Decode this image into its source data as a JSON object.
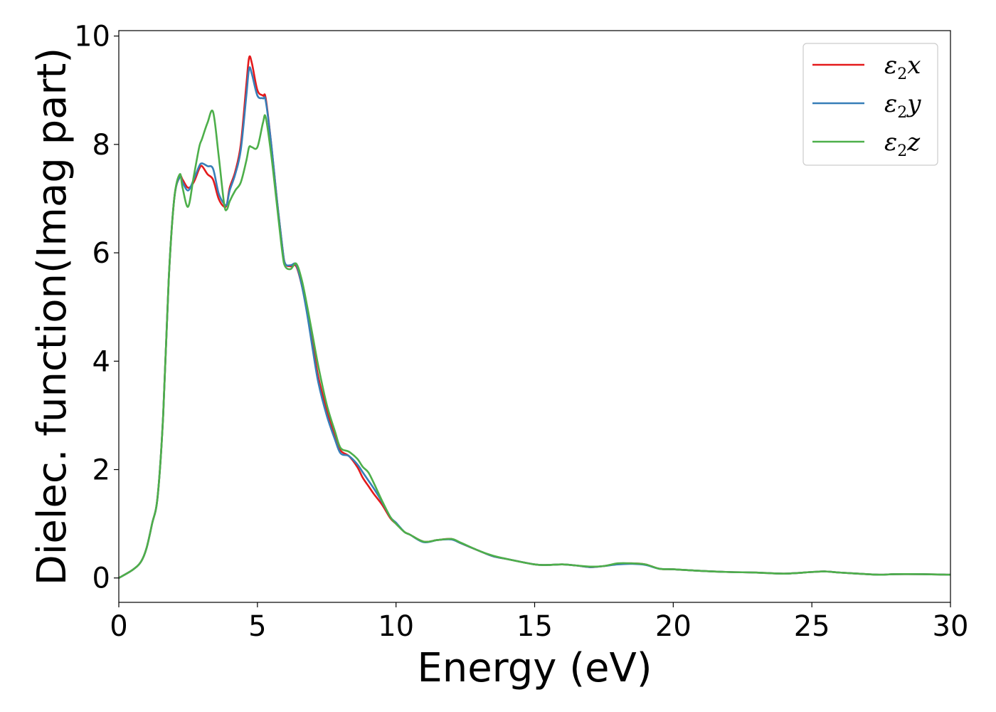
{
  "chart_data": {
    "type": "line",
    "xlabel": "Energy (eV)",
    "ylabel": "Dielec. function(Imag part)",
    "xlim": [
      0,
      30
    ],
    "ylim": [
      -0.45,
      10.1
    ],
    "xticks": [
      "0",
      "5",
      "10",
      "15",
      "20",
      "25",
      "30"
    ],
    "yticks": [
      "0",
      "2",
      "4",
      "6",
      "8",
      "10"
    ],
    "legend_position": "upper-right",
    "grid": false,
    "series": [
      {
        "name": "ε2x",
        "legend_base": "ε",
        "legend_sub": "2",
        "legend_var": "x",
        "color": "#e41a1c",
        "x": [
          0,
          0.5,
          0.8,
          1.0,
          1.2,
          1.4,
          1.6,
          1.8,
          2.0,
          2.2,
          2.3,
          2.5,
          2.7,
          2.9,
          3.0,
          3.2,
          3.4,
          3.6,
          3.8,
          3.9,
          4.0,
          4.2,
          4.4,
          4.6,
          4.7,
          4.8,
          5.0,
          5.2,
          5.3,
          5.5,
          5.7,
          5.9,
          6.0,
          6.2,
          6.4,
          6.6,
          6.8,
          7.0,
          7.2,
          7.5,
          7.8,
          8.0,
          8.3,
          8.6,
          8.8,
          9.0,
          9.2,
          9.5,
          9.8,
          10.0,
          10.3,
          10.5,
          11.0,
          11.5,
          12.0,
          12.3,
          13.0,
          13.5,
          14.0,
          15.0,
          15.5,
          16.0,
          16.5,
          17.0,
          17.5,
          18.0,
          18.5,
          19.0,
          19.5,
          20.0,
          21.0,
          22.0,
          23.0,
          24.0,
          25.0,
          25.5,
          26.0,
          27.0,
          27.5,
          28.0,
          29.0,
          30.0
        ],
        "y": [
          0.0,
          0.15,
          0.3,
          0.55,
          1.0,
          1.5,
          3.0,
          5.5,
          7.0,
          7.4,
          7.35,
          7.2,
          7.3,
          7.55,
          7.6,
          7.45,
          7.35,
          7.0,
          6.85,
          6.9,
          7.2,
          7.5,
          8.0,
          9.1,
          9.6,
          9.5,
          9.0,
          8.9,
          8.85,
          8.0,
          7.0,
          6.1,
          5.8,
          5.75,
          5.75,
          5.4,
          4.9,
          4.3,
          3.7,
          3.1,
          2.6,
          2.35,
          2.25,
          2.05,
          1.85,
          1.7,
          1.55,
          1.35,
          1.1,
          1.0,
          0.85,
          0.8,
          0.67,
          0.7,
          0.72,
          0.65,
          0.5,
          0.4,
          0.35,
          0.25,
          0.24,
          0.25,
          0.23,
          0.2,
          0.22,
          0.26,
          0.27,
          0.25,
          0.17,
          0.16,
          0.13,
          0.11,
          0.1,
          0.08,
          0.11,
          0.12,
          0.1,
          0.07,
          0.06,
          0.07,
          0.07,
          0.06
        ]
      },
      {
        "name": "ε2y",
        "legend_base": "ε",
        "legend_sub": "2",
        "legend_var": "y",
        "color": "#377eb8",
        "x": [
          0,
          0.5,
          0.8,
          1.0,
          1.2,
          1.4,
          1.6,
          1.8,
          2.0,
          2.2,
          2.3,
          2.5,
          2.7,
          2.9,
          3.0,
          3.2,
          3.4,
          3.6,
          3.8,
          3.9,
          4.0,
          4.2,
          4.4,
          4.6,
          4.7,
          4.8,
          5.0,
          5.2,
          5.3,
          5.5,
          5.7,
          5.9,
          6.0,
          6.2,
          6.4,
          6.6,
          6.8,
          7.0,
          7.2,
          7.5,
          7.8,
          8.0,
          8.3,
          8.6,
          8.8,
          9.0,
          9.2,
          9.5,
          9.8,
          10.0,
          10.3,
          10.5,
          11.0,
          11.5,
          12.0,
          12.3,
          13.0,
          13.5,
          14.0,
          15.0,
          15.5,
          16.0,
          16.5,
          17.0,
          17.5,
          18.0,
          18.5,
          19.0,
          19.5,
          20.0,
          21.0,
          22.0,
          23.0,
          24.0,
          25.0,
          25.5,
          26.0,
          27.0,
          27.5,
          28.0,
          29.0,
          30.0
        ],
        "y": [
          0.0,
          0.15,
          0.3,
          0.55,
          1.0,
          1.5,
          3.0,
          5.5,
          7.0,
          7.4,
          7.3,
          7.15,
          7.35,
          7.6,
          7.65,
          7.6,
          7.55,
          7.1,
          6.9,
          6.9,
          7.15,
          7.45,
          7.9,
          8.9,
          9.4,
          9.3,
          8.9,
          8.85,
          8.8,
          8.0,
          7.0,
          6.1,
          5.8,
          5.77,
          5.78,
          5.4,
          4.85,
          4.2,
          3.6,
          3.0,
          2.55,
          2.3,
          2.25,
          2.1,
          1.95,
          1.8,
          1.65,
          1.4,
          1.12,
          1.02,
          0.85,
          0.8,
          0.66,
          0.7,
          0.71,
          0.65,
          0.5,
          0.4,
          0.35,
          0.25,
          0.24,
          0.25,
          0.23,
          0.2,
          0.22,
          0.25,
          0.26,
          0.24,
          0.17,
          0.16,
          0.13,
          0.11,
          0.1,
          0.08,
          0.11,
          0.12,
          0.1,
          0.07,
          0.06,
          0.07,
          0.07,
          0.06
        ]
      },
      {
        "name": "ε2z",
        "legend_base": "ε",
        "legend_sub": "2",
        "legend_var": "z",
        "color": "#4daf4a",
        "x": [
          0,
          0.5,
          0.8,
          1.0,
          1.2,
          1.4,
          1.6,
          1.8,
          2.0,
          2.2,
          2.3,
          2.5,
          2.7,
          2.9,
          3.0,
          3.2,
          3.4,
          3.6,
          3.8,
          3.9,
          4.0,
          4.2,
          4.4,
          4.6,
          4.7,
          4.8,
          5.0,
          5.2,
          5.3,
          5.5,
          5.7,
          5.9,
          6.0,
          6.2,
          6.4,
          6.6,
          6.8,
          7.0,
          7.2,
          7.5,
          7.8,
          8.0,
          8.3,
          8.6,
          8.8,
          9.0,
          9.2,
          9.5,
          9.8,
          10.0,
          10.3,
          10.5,
          11.0,
          11.5,
          12.0,
          12.3,
          13.0,
          13.5,
          14.0,
          15.0,
          15.5,
          16.0,
          16.5,
          17.0,
          17.5,
          18.0,
          18.5,
          19.0,
          19.5,
          20.0,
          21.0,
          22.0,
          23.0,
          24.0,
          25.0,
          25.5,
          26.0,
          27.0,
          27.5,
          28.0,
          29.0,
          30.0
        ],
        "y": [
          0.0,
          0.15,
          0.3,
          0.55,
          1.0,
          1.5,
          3.0,
          5.5,
          7.0,
          7.45,
          7.2,
          6.85,
          7.4,
          7.95,
          8.1,
          8.4,
          8.6,
          7.8,
          6.9,
          6.8,
          6.95,
          7.15,
          7.3,
          7.7,
          7.95,
          7.95,
          7.95,
          8.4,
          8.5,
          7.8,
          6.9,
          6.0,
          5.75,
          5.7,
          5.8,
          5.5,
          5.0,
          4.45,
          3.9,
          3.2,
          2.7,
          2.4,
          2.33,
          2.2,
          2.05,
          1.95,
          1.75,
          1.42,
          1.12,
          1.0,
          0.85,
          0.8,
          0.67,
          0.7,
          0.72,
          0.66,
          0.5,
          0.41,
          0.35,
          0.25,
          0.24,
          0.25,
          0.23,
          0.21,
          0.22,
          0.27,
          0.27,
          0.25,
          0.17,
          0.16,
          0.13,
          0.11,
          0.1,
          0.08,
          0.11,
          0.12,
          0.1,
          0.07,
          0.06,
          0.07,
          0.07,
          0.06
        ]
      }
    ]
  }
}
